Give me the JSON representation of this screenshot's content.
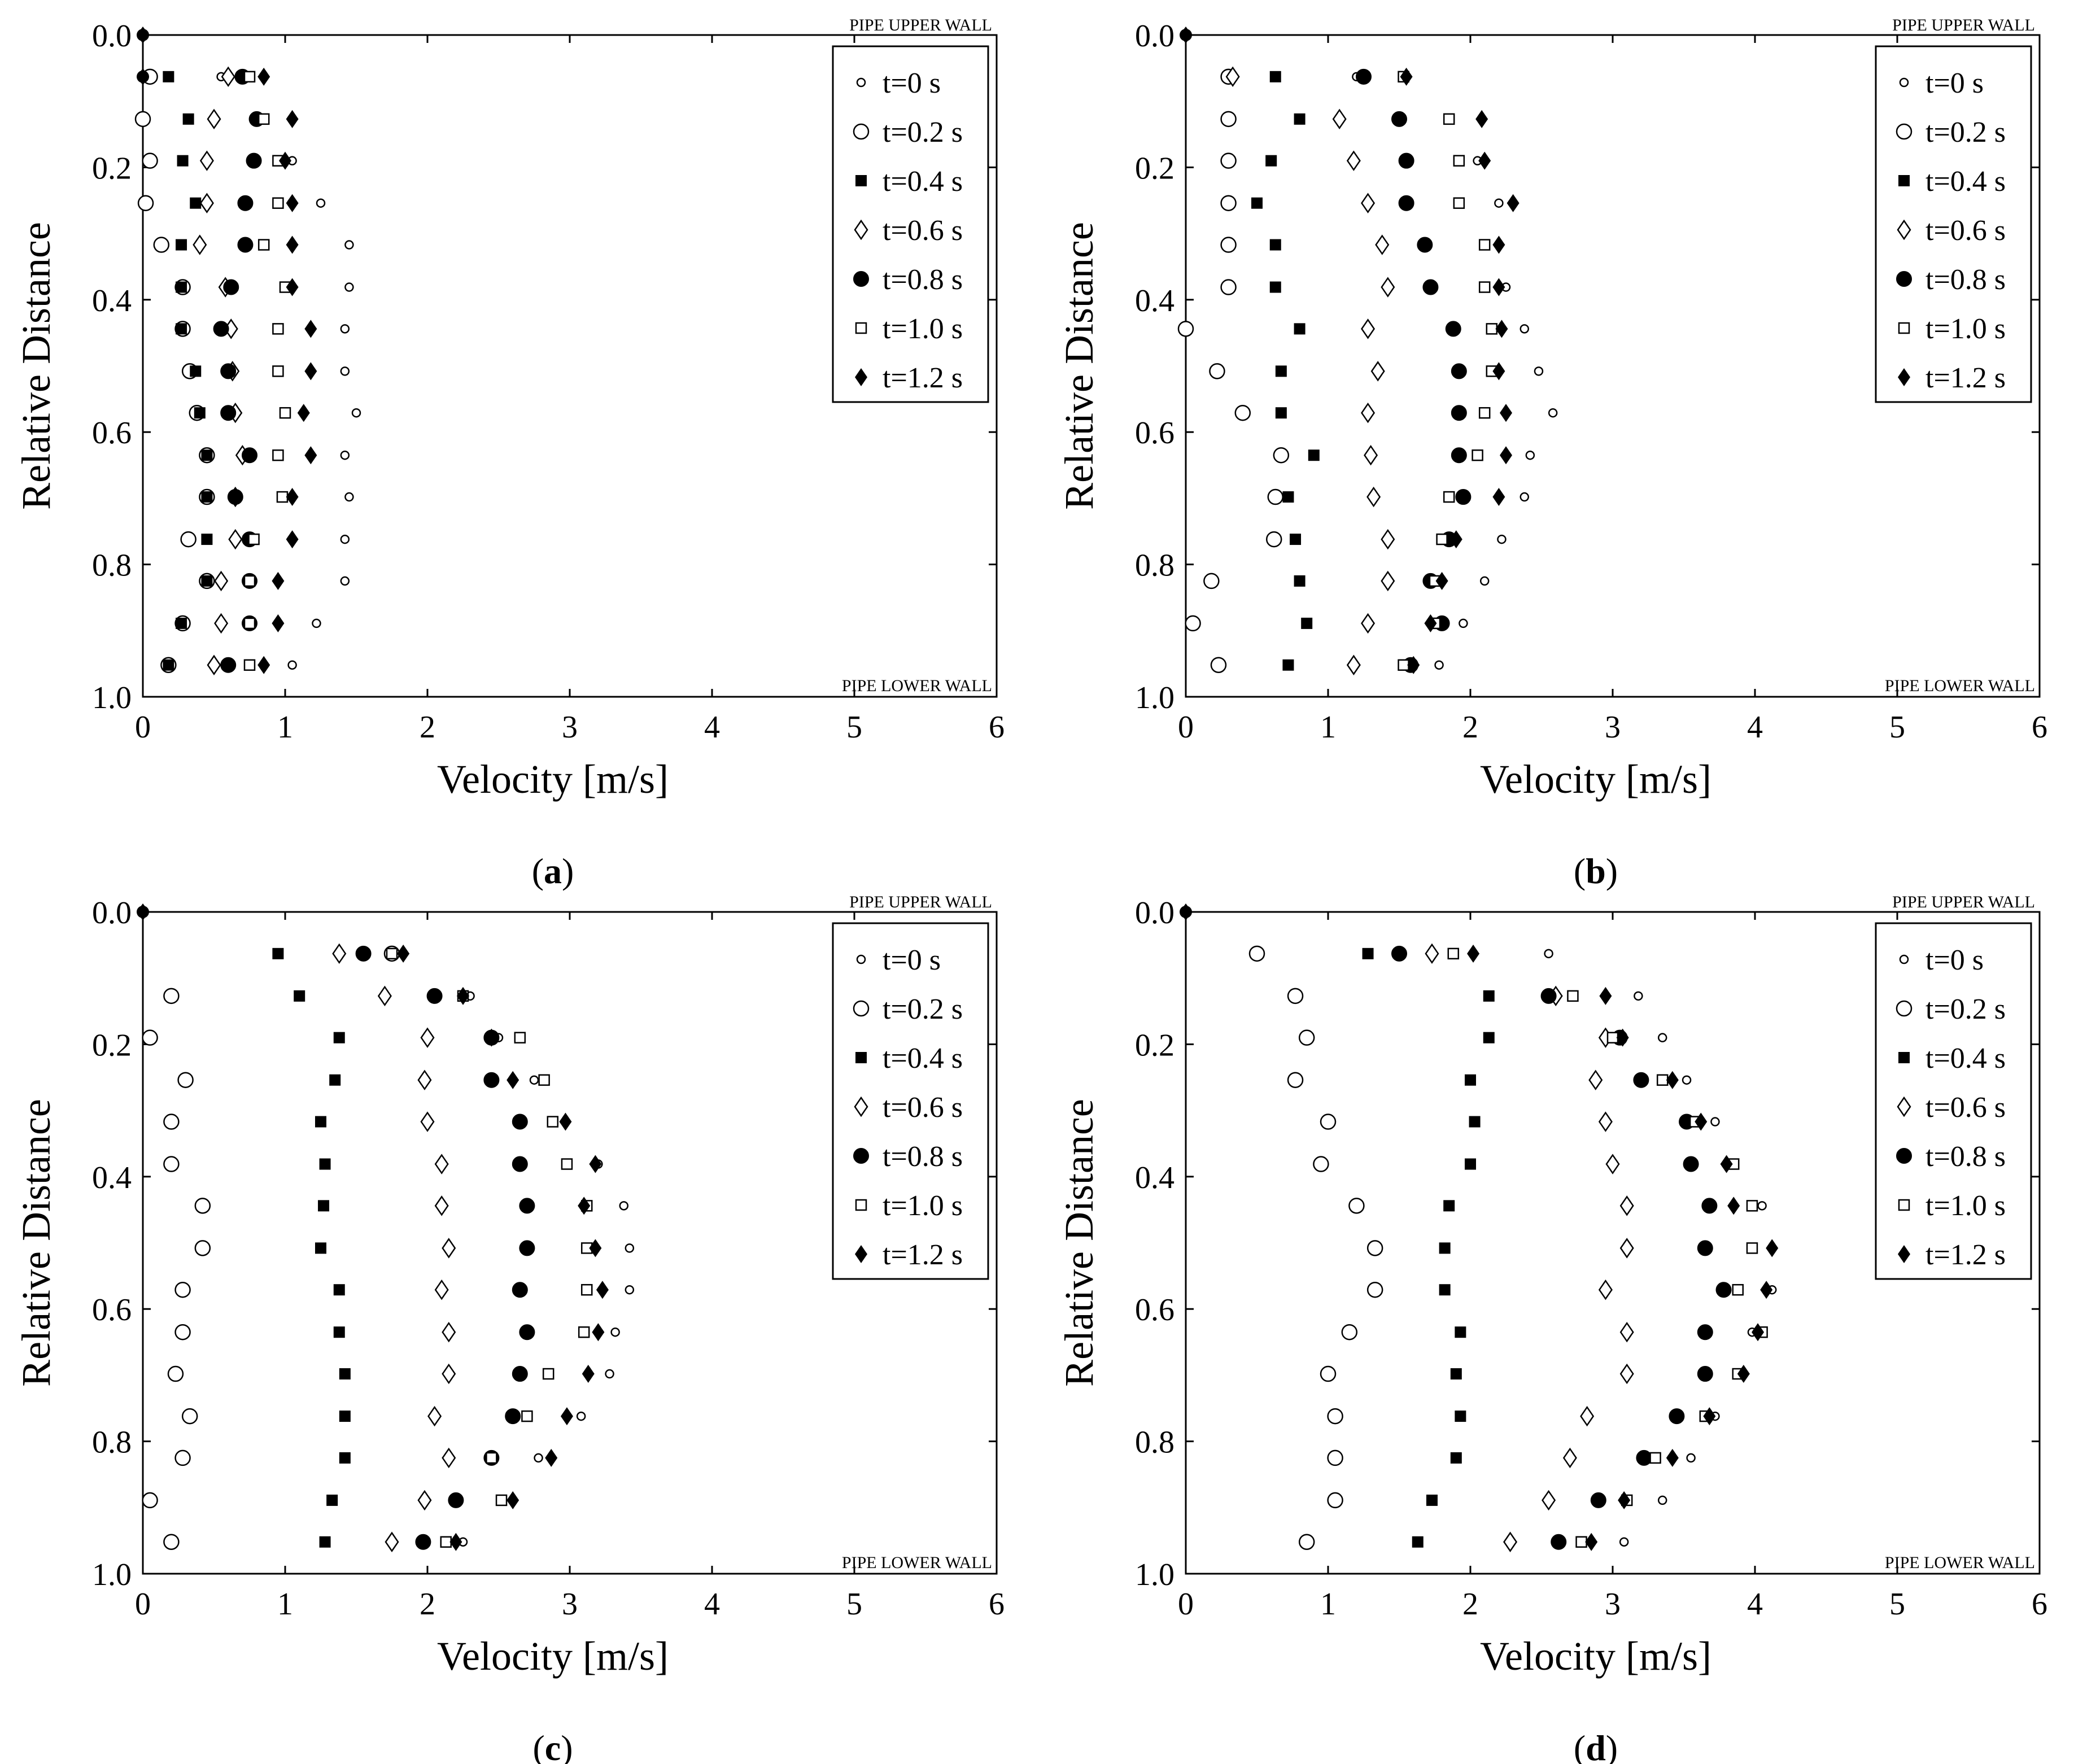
{
  "figure": {
    "xlabel": "Velocity [m/s]",
    "ylabel": "Relative Distance",
    "upper_wall_label": "PIPE UPPER WALL",
    "lower_wall_label": "PIPE LOWER WALL",
    "x_ticks": [
      "0",
      "1",
      "2",
      "3",
      "4",
      "5",
      "6"
    ],
    "y_ticks": [
      "0.0",
      "0.2",
      "0.4",
      "0.6",
      "0.8",
      "1.0"
    ],
    "legend": [
      "t=0 s",
      "t=0.2 s",
      "t=0.4 s",
      "t=0.6 s",
      "t=0.8 s",
      "t=1.0 s",
      "t=1.2 s"
    ],
    "panels": [
      {
        "open": "(",
        "letter": "a",
        "close": ")"
      },
      {
        "open": "(",
        "letter": "b",
        "close": ")"
      },
      {
        "open": "(",
        "letter": "c",
        "close": ")"
      },
      {
        "open": "(",
        "letter": "d",
        "close": ")"
      }
    ]
  },
  "chart_data": [
    {
      "type": "scatter",
      "panel": "a",
      "xlabel": "Velocity [m/s]",
      "ylabel": "Relative Distance",
      "xlim": [
        0,
        6
      ],
      "ylim": [
        1.0,
        0.0
      ],
      "y": [
        0.063,
        0.127,
        0.19,
        0.254,
        0.317,
        0.381,
        0.444,
        0.508,
        0.571,
        0.635,
        0.698,
        0.762,
        0.825,
        0.889,
        0.952
      ],
      "series": [
        {
          "name": "t=0 s",
          "marker": "small-open-circle",
          "x": [
            0.55,
            0.85,
            1.05,
            1.25,
            1.45,
            1.45,
            1.42,
            1.42,
            1.5,
            1.42,
            1.45,
            1.42,
            1.42,
            1.22,
            1.05
          ]
        },
        {
          "name": "t=0.2 s",
          "marker": "open-circle",
          "x": [
            0.05,
            0.0,
            0.05,
            0.02,
            0.13,
            0.28,
            0.28,
            0.33,
            0.38,
            0.45,
            0.45,
            0.32,
            0.45,
            0.28,
            0.18
          ]
        },
        {
          "name": "t=0.4 s",
          "marker": "filled-square",
          "x": [
            0.18,
            0.32,
            0.28,
            0.37,
            0.27,
            0.27,
            0.27,
            0.37,
            0.4,
            0.45,
            0.45,
            0.45,
            0.45,
            0.27,
            0.18
          ]
        },
        {
          "name": "t=0.6 s",
          "marker": "open-diamond",
          "x": [
            0.6,
            0.5,
            0.45,
            0.45,
            0.4,
            0.58,
            0.62,
            0.63,
            0.65,
            0.7,
            0.65,
            0.65,
            0.55,
            0.55,
            0.5
          ]
        },
        {
          "name": "t=0.8 s",
          "marker": "filled-circle",
          "x": [
            0.7,
            0.8,
            0.78,
            0.72,
            0.72,
            0.62,
            0.55,
            0.6,
            0.6,
            0.75,
            0.65,
            0.75,
            0.75,
            0.75,
            0.6
          ]
        },
        {
          "name": "t=1.0 s",
          "marker": "open-square",
          "x": [
            0.75,
            0.85,
            0.95,
            0.95,
            0.85,
            1.0,
            0.95,
            0.95,
            1.0,
            0.95,
            0.98,
            0.78,
            0.75,
            0.75,
            0.75
          ]
        },
        {
          "name": "t=1.2 s",
          "marker": "filled-diamond",
          "x": [
            0.85,
            1.05,
            1.0,
            1.05,
            1.05,
            1.05,
            1.18,
            1.18,
            1.13,
            1.18,
            1.05,
            1.05,
            0.95,
            0.95,
            0.85
          ]
        }
      ],
      "wall_points": [
        [
          0,
          0
        ],
        [
          0,
          0.063
        ]
      ]
    },
    {
      "type": "scatter",
      "panel": "b",
      "xlabel": "Velocity [m/s]",
      "ylabel": "Relative Distance",
      "xlim": [
        0,
        6
      ],
      "ylim": [
        1.0,
        0.0
      ],
      "y": [
        0.063,
        0.127,
        0.19,
        0.254,
        0.317,
        0.381,
        0.444,
        0.508,
        0.571,
        0.635,
        0.698,
        0.762,
        0.825,
        0.889,
        0.952
      ],
      "series": [
        {
          "name": "t=0 s",
          "marker": "small-open-circle",
          "x": [
            1.2,
            1.85,
            2.05,
            2.2,
            2.2,
            2.25,
            2.38,
            2.48,
            2.58,
            2.42,
            2.38,
            2.22,
            2.1,
            1.95,
            1.78
          ]
        },
        {
          "name": "t=0.2 s",
          "marker": "open-circle",
          "x": [
            0.3,
            0.3,
            0.3,
            0.3,
            0.3,
            0.3,
            0.0,
            0.22,
            0.4,
            0.67,
            0.63,
            0.62,
            0.18,
            0.05,
            0.23
          ]
        },
        {
          "name": "t=0.4 s",
          "marker": "filled-square",
          "x": [
            0.63,
            0.8,
            0.6,
            0.5,
            0.63,
            0.63,
            0.8,
            0.67,
            0.67,
            0.9,
            0.72,
            0.77,
            0.8,
            0.85,
            0.72
          ]
        },
        {
          "name": "t=0.6 s",
          "marker": "open-diamond",
          "x": [
            0.33,
            1.08,
            1.18,
            1.28,
            1.38,
            1.42,
            1.28,
            1.35,
            1.28,
            1.3,
            1.32,
            1.42,
            1.42,
            1.28,
            1.18
          ]
        },
        {
          "name": "t=0.8 s",
          "marker": "filled-circle",
          "x": [
            1.25,
            1.5,
            1.55,
            1.55,
            1.68,
            1.72,
            1.88,
            1.92,
            1.92,
            1.92,
            1.95,
            1.85,
            1.72,
            1.8,
            1.58
          ]
        },
        {
          "name": "t=1.0 s",
          "marker": "open-square",
          "x": [
            1.53,
            1.85,
            1.92,
            1.92,
            2.1,
            2.1,
            2.15,
            2.15,
            2.1,
            2.05,
            1.85,
            1.8,
            1.75,
            1.75,
            1.53
          ]
        },
        {
          "name": "t=1.2 s",
          "marker": "filled-diamond",
          "x": [
            1.55,
            2.08,
            2.1,
            2.3,
            2.2,
            2.2,
            2.22,
            2.2,
            2.25,
            2.25,
            2.2,
            1.9,
            1.8,
            1.72,
            1.6
          ]
        }
      ],
      "wall_points": [
        [
          0,
          0
        ]
      ]
    },
    {
      "type": "scatter",
      "panel": "c",
      "xlabel": "Velocity [m/s]",
      "ylabel": "Relative Distance",
      "xlim": [
        0,
        6
      ],
      "ylim": [
        1.0,
        0.0
      ],
      "y": [
        0.063,
        0.127,
        0.19,
        0.254,
        0.317,
        0.381,
        0.444,
        0.508,
        0.571,
        0.635,
        0.698,
        0.762,
        0.825,
        0.889,
        0.952
      ],
      "series": [
        {
          "name": "t=0 s",
          "marker": "small-open-circle",
          "x": [
            1.75,
            2.3,
            2.5,
            2.75,
            2.88,
            3.2,
            3.38,
            3.42,
            3.42,
            3.32,
            3.28,
            3.08,
            2.78,
            2.6,
            2.25
          ]
        },
        {
          "name": "t=0.2 s",
          "marker": "open-circle",
          "x": [
            1.75,
            0.2,
            0.05,
            0.3,
            0.2,
            0.2,
            0.42,
            0.42,
            0.28,
            0.28,
            0.23,
            0.33,
            0.28,
            0.05,
            0.2
          ]
        },
        {
          "name": "t=0.4 s",
          "marker": "filled-square",
          "x": [
            0.95,
            1.1,
            1.38,
            1.35,
            1.25,
            1.28,
            1.27,
            1.25,
            1.38,
            1.38,
            1.42,
            1.42,
            1.42,
            1.33,
            1.28
          ]
        },
        {
          "name": "t=0.6 s",
          "marker": "open-diamond",
          "x": [
            1.38,
            1.7,
            2.0,
            1.98,
            2.0,
            2.1,
            2.1,
            2.15,
            2.1,
            2.15,
            2.15,
            2.05,
            2.15,
            1.98,
            1.75
          ]
        },
        {
          "name": "t=0.8 s",
          "marker": "filled-circle",
          "x": [
            1.55,
            2.05,
            2.45,
            2.45,
            2.65,
            2.65,
            2.7,
            2.7,
            2.65,
            2.7,
            2.65,
            2.6,
            2.45,
            2.2,
            1.97
          ]
        },
        {
          "name": "t=1.0 s",
          "marker": "open-square",
          "x": [
            1.75,
            2.25,
            2.65,
            2.82,
            2.88,
            2.98,
            3.12,
            3.12,
            3.12,
            3.1,
            2.85,
            2.7,
            2.45,
            2.52,
            2.13
          ]
        },
        {
          "name": "t=1.2 s",
          "marker": "filled-diamond",
          "x": [
            1.83,
            2.25,
            2.45,
            2.6,
            2.97,
            3.18,
            3.1,
            3.18,
            3.23,
            3.2,
            3.13,
            2.98,
            2.87,
            2.6,
            2.2
          ]
        }
      ],
      "wall_points": [
        [
          0,
          0
        ]
      ]
    },
    {
      "type": "scatter",
      "panel": "d",
      "xlabel": "Velocity [m/s]",
      "ylabel": "Relative Distance",
      "xlim": [
        0,
        6
      ],
      "ylim": [
        1.0,
        0.0
      ],
      "y": [
        0.063,
        0.127,
        0.19,
        0.254,
        0.317,
        0.381,
        0.444,
        0.508,
        0.571,
        0.635,
        0.698,
        0.762,
        0.825,
        0.889,
        0.952
      ],
      "series": [
        {
          "name": "t=0 s",
          "marker": "small-open-circle",
          "x": [
            2.55,
            3.18,
            3.35,
            3.52,
            3.72,
            3.85,
            4.05,
            4.12,
            4.12,
            3.98,
            3.88,
            3.72,
            3.55,
            3.35,
            3.08
          ]
        },
        {
          "name": "t=0.2 s",
          "marker": "open-circle",
          "x": [
            0.5,
            0.77,
            0.85,
            0.77,
            1.0,
            0.95,
            1.2,
            1.33,
            1.33,
            1.15,
            1.0,
            1.05,
            1.05,
            1.05,
            0.85
          ]
        },
        {
          "name": "t=0.4 s",
          "marker": "filled-square",
          "x": [
            1.28,
            2.13,
            2.13,
            2.0,
            2.03,
            2.0,
            1.85,
            1.82,
            1.82,
            1.93,
            1.9,
            1.93,
            1.9,
            1.73,
            1.63
          ]
        },
        {
          "name": "t=0.6 s",
          "marker": "open-diamond",
          "x": [
            1.73,
            2.6,
            2.95,
            2.88,
            2.95,
            3.0,
            3.1,
            3.1,
            2.95,
            3.1,
            3.1,
            2.82,
            2.7,
            2.55,
            2.28
          ]
        },
        {
          "name": "t=0.8 s",
          "marker": "filled-circle",
          "x": [
            1.5,
            2.55,
            3.05,
            3.2,
            3.52,
            3.55,
            3.68,
            3.65,
            3.78,
            3.65,
            3.65,
            3.45,
            3.22,
            2.9,
            2.62
          ]
        },
        {
          "name": "t=1.0 s",
          "marker": "open-square",
          "x": [
            1.88,
            2.72,
            3.0,
            3.35,
            3.58,
            3.85,
            3.98,
            3.98,
            3.88,
            4.05,
            3.88,
            3.65,
            3.3,
            3.1,
            2.78
          ]
        },
        {
          "name": "t=1.2 s",
          "marker": "filled-diamond",
          "x": [
            2.02,
            2.95,
            3.07,
            3.42,
            3.62,
            3.8,
            3.85,
            4.12,
            4.08,
            4.02,
            3.92,
            3.68,
            3.42,
            3.08,
            2.85
          ]
        }
      ],
      "wall_points": [
        [
          0,
          0
        ]
      ]
    }
  ]
}
